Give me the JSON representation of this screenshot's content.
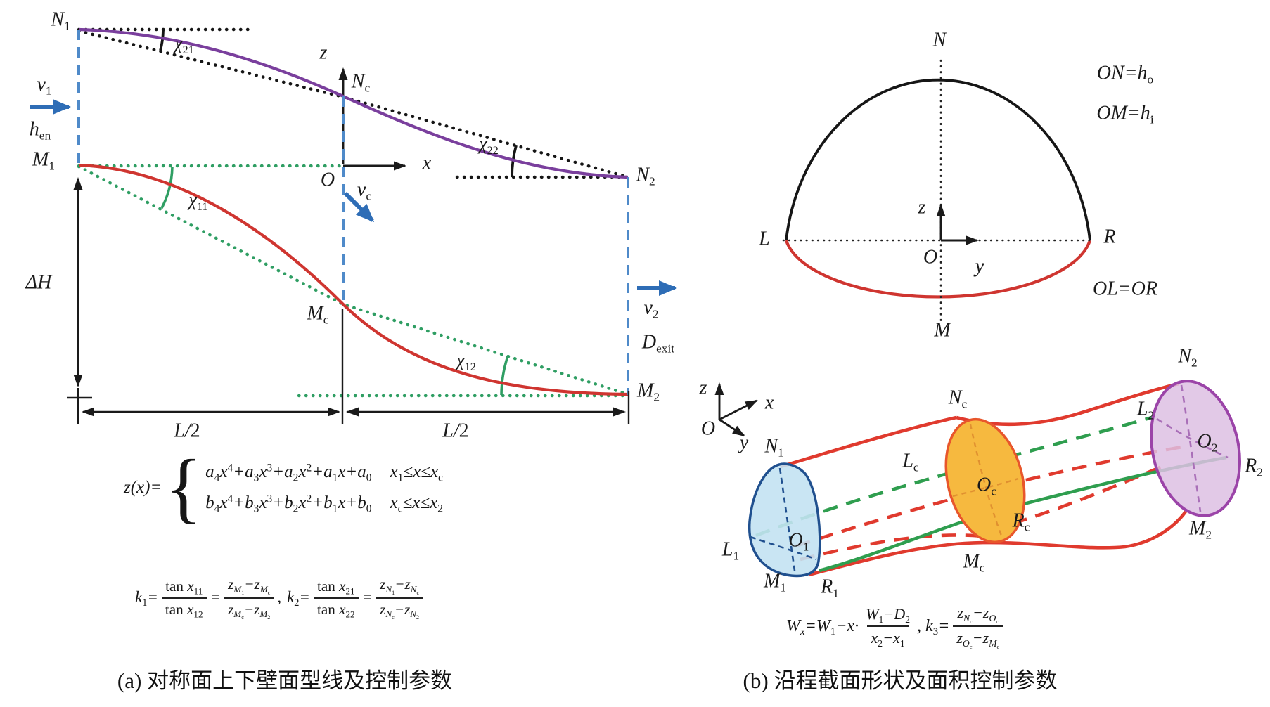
{
  "colors": {
    "ink": "#1a1a1a",
    "purple_wall": "#7a3f9d",
    "red_wall": "#cf3530",
    "green_guide": "#2f9e63",
    "blue_dash": "#4f8ac9",
    "blue_arrow": "#2e6db6",
    "tube_red": "#e03a2e",
    "tube_green": "#2f9e4f",
    "in_fill": "#c3e2f2",
    "in_stroke": "#20508f",
    "mid_fill": "#f6b93f",
    "mid_stroke": "#e8562b",
    "out_fill": "#ddc0e3",
    "out_stroke": "#9b44a8"
  },
  "panel_a": {
    "caption": "(a) 对称面上下壁面型线及控制参数",
    "labels": {
      "n1": "N_{1}",
      "chi21": "χ_{21}",
      "v1": "v_{1}",
      "hen": "h_{§en§}",
      "m1": "M_{1}",
      "chi11": "χ_{11}",
      "dh": "ΔH",
      "z": "z",
      "nc": "N_{§c§}",
      "o": "O",
      "x": "x",
      "vc": "v_{§c§}",
      "chi22": "χ_{22}",
      "n2": "N_{2}",
      "v2": "v_{2}",
      "dexit": "D_{§exit§}",
      "m2": "M_{2}",
      "mc": "M_{§c§}",
      "chi12": "χ_{12}",
      "l2_left": "L/2",
      "l2_right": "L/2"
    },
    "eq_profile": {
      "lhs": "z(x)=",
      "brace": "{",
      "line1": "a_{4}x^{4}+a_{3}x^{3}+a_{2}x^{2}+a_{1}x+a_{0}",
      "cond1": "x_{1}≤x≤x_{§c§}",
      "line2": "b_{4}x^{4}+b_{3}x^{3}+b_{2}x^{2}+b_{1}x+b_{0}",
      "cond2": "x_{§c§}≤x≤x_{2}"
    },
    "eq_k": {
      "k1_lhs": "k_{1}=",
      "k1_f1_num": "§tan§ x_{11}",
      "k1_f1_den": "§tan§ x_{12}",
      "eq1": "=",
      "k1_f2_num": "z_{M_{1}}−z_{M_{§c§}}",
      "k1_f2_den": "z_{M_{§c§}}−z_{M_{2}}",
      "sep": ",",
      "k2_lhs": "k_{2}=",
      "k2_f1_num": "§tan§ x_{21}",
      "k2_f1_den": "§tan§ x_{22}",
      "eq2": "=",
      "k2_f2_num": "z_{N_{1}}−z_{N_{§c§}}",
      "k2_f2_den": "z_{N_{§c§}}−z_{N_{2}}"
    }
  },
  "panel_b": {
    "caption": "(b) 沿程截面形状及面积控制参数",
    "section": {
      "n": "N",
      "l": "L",
      "r": "R",
      "m": "M",
      "o": "O",
      "z": "z",
      "y": "y",
      "rel_on": "ON=h_{§o§}",
      "rel_om": "OM=h_{§i§}",
      "rel_olor": "OL=OR"
    },
    "tube": {
      "o": "O",
      "z": "z",
      "x": "x",
      "y": "y",
      "n1": "N_{1}",
      "l1": "L_{1}",
      "o1": "O_{1}",
      "m1": "M_{1}",
      "r1": "R_{1}",
      "nc": "N_{§c§}",
      "lc": "L_{§c§}",
      "oc": "O_{§c§}",
      "mc": "M_{§c§}",
      "rc": "R_{§c§}",
      "n2": "N_{2}",
      "l2": "L_{2}",
      "o2": "O_{2}",
      "r2": "R_{2}",
      "m2": "M_{2}"
    },
    "eq_w": {
      "lhs": "W_{x}=W_{1}−x·",
      "f1_num": "W_{1}−D_{2}",
      "f1_den": "x_{2}−x_{1}",
      "sep": ", ",
      "k3_lhs": "k_{3}=",
      "f2_num": "z_{N_{§c§}}−z_{O_{§c§}}",
      "f2_den": "z_{O_{§c§}}−z_{M_{§c§}}"
    }
  }
}
